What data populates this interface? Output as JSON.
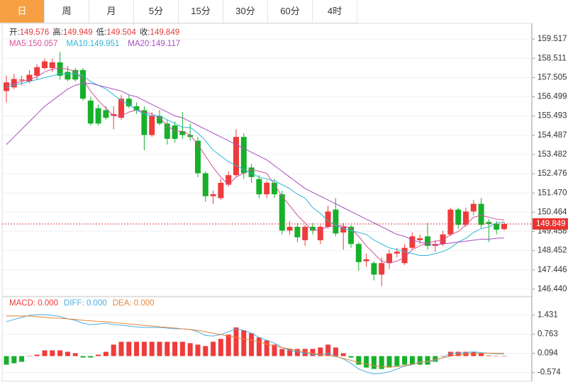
{
  "tabs": [
    "日",
    "周",
    "月",
    "5分",
    "15分",
    "30分",
    "60分",
    "4时"
  ],
  "active_tab": 0,
  "info_labels": [
    "开:",
    "高:",
    "低:",
    "收:"
  ],
  "chart_data": {
    "type": "candlestick",
    "up_color": "#ee3b3b",
    "down_color": "#17b02b",
    "ylim": [
      146.067,
      160.337
    ],
    "yticks": [
      159.517,
      158.511,
      157.505,
      156.499,
      155.493,
      154.487,
      153.482,
      152.476,
      {
        "value": 151.47,
        "label": "151.470"
      },
      150.464,
      149.458,
      148.452,
      147.446,
      {
        "value": 146.44,
        "label": "146.440"
      }
    ],
    "candles": [
      [
        156.8,
        157.6,
        156.2,
        157.25
      ],
      [
        156.99,
        157.7,
        156.9,
        157.43
      ],
      [
        157.35,
        157.6,
        157.1,
        157.4
      ],
      [
        157.3,
        157.9,
        157.2,
        157.65
      ],
      [
        157.6,
        158.2,
        157.4,
        158.05
      ],
      [
        158.0,
        158.5,
        157.9,
        158.35
      ],
      [
        158.0,
        158.5,
        157.8,
        158.3
      ],
      [
        158.3,
        158.85,
        157.4,
        157.6
      ],
      [
        157.8,
        158.1,
        157.3,
        157.4
      ],
      [
        157.9,
        158.0,
        157.3,
        157.4
      ],
      [
        157.9,
        158.0,
        156.3,
        156.4
      ],
      [
        156.3,
        156.5,
        155.0,
        155.1
      ],
      [
        155.9,
        156.1,
        155.0,
        155.1
      ],
      [
        155.8,
        156.0,
        155.3,
        155.4
      ],
      [
        155.5,
        156.0,
        154.8,
        155.6
      ],
      [
        155.4,
        156.6,
        155.3,
        156.4
      ],
      [
        156.4,
        156.6,
        155.9,
        156.0
      ],
      [
        156.0,
        156.2,
        155.6,
        155.8
      ],
      [
        155.8,
        156.0,
        153.7,
        154.5
      ],
      [
        154.5,
        155.7,
        154.4,
        155.5
      ],
      [
        155.5,
        155.8,
        155.0,
        155.1
      ],
      [
        155.1,
        155.3,
        154.0,
        154.3
      ],
      [
        155.0,
        155.2,
        154.1,
        154.3
      ],
      [
        154.7,
        155.7,
        154.3,
        154.5
      ],
      [
        154.5,
        155.1,
        154.2,
        154.4
      ],
      [
        154.2,
        154.4,
        152.3,
        152.5
      ],
      [
        152.5,
        152.6,
        151.0,
        151.3
      ],
      [
        151.3,
        151.6,
        150.9,
        151.4
      ],
      [
        151.2,
        152.2,
        151.1,
        152.0
      ],
      [
        151.9,
        152.6,
        151.8,
        152.4
      ],
      [
        152.4,
        154.8,
        152.3,
        154.4
      ],
      [
        154.4,
        154.6,
        152.2,
        152.5
      ],
      [
        152.8,
        153.0,
        152.0,
        152.3
      ],
      [
        152.2,
        152.4,
        151.2,
        151.4
      ],
      [
        151.4,
        152.1,
        151.2,
        152.0
      ],
      [
        152.0,
        152.2,
        151.2,
        151.4
      ],
      [
        151.4,
        151.6,
        149.3,
        149.5
      ],
      [
        149.5,
        150.0,
        149.3,
        149.7
      ],
      [
        149.7,
        149.9,
        148.9,
        149.15
      ],
      [
        149.0,
        149.8,
        148.7,
        149.7
      ],
      [
        149.7,
        149.9,
        149.3,
        149.5
      ],
      [
        149.0,
        149.8,
        148.8,
        149.7
      ],
      [
        149.7,
        150.8,
        149.6,
        150.5
      ],
      [
        150.6,
        151.2,
        149.2,
        149.35
      ],
      [
        149.4,
        149.9,
        148.5,
        149.7
      ],
      [
        149.7,
        149.8,
        148.6,
        148.8
      ],
      [
        148.8,
        148.9,
        147.4,
        147.85
      ],
      [
        147.9,
        148.3,
        147.6,
        148.0
      ],
      [
        147.8,
        147.9,
        146.9,
        147.2
      ],
      [
        147.2,
        148.1,
        146.6,
        147.8
      ],
      [
        147.8,
        148.5,
        147.5,
        148.3
      ],
      [
        148.3,
        148.6,
        148.1,
        148.4
      ],
      [
        147.8,
        148.8,
        147.7,
        148.6
      ],
      [
        148.6,
        149.4,
        148.5,
        149.2
      ],
      [
        149.0,
        149.3,
        148.8,
        149.1
      ],
      [
        149.2,
        149.9,
        148.5,
        148.7
      ],
      [
        148.7,
        149.0,
        148.4,
        148.8
      ],
      [
        148.8,
        149.5,
        148.7,
        149.3
      ],
      [
        149.3,
        150.7,
        149.2,
        150.6
      ],
      [
        150.6,
        150.7,
        149.6,
        149.8
      ],
      [
        149.8,
        150.7,
        149.7,
        150.5
      ],
      [
        150.5,
        151.1,
        150.3,
        150.9
      ],
      [
        150.9,
        151.2,
        149.6,
        149.8
      ],
      [
        149.95,
        150.1,
        148.9,
        149.85
      ],
      [
        149.85,
        150.0,
        149.3,
        149.55
      ],
      [
        149.576,
        149.949,
        149.504,
        149.849
      ]
    ],
    "series": [
      {
        "name": "MA5",
        "color": "#d2509a",
        "values": [
          157.1,
          157.2,
          157.3,
          157.4,
          157.55,
          157.8,
          157.95,
          158.0,
          157.95,
          157.8,
          157.4,
          156.8,
          156.3,
          155.9,
          155.5,
          155.5,
          155.7,
          155.8,
          155.7,
          155.6,
          155.4,
          155.0,
          154.7,
          154.7,
          154.5,
          154.0,
          153.4,
          152.8,
          152.3,
          151.9,
          152.3,
          152.5,
          152.7,
          152.6,
          152.5,
          151.9,
          151.3,
          150.8,
          150.3,
          149.9,
          149.5,
          149.55,
          149.7,
          149.75,
          149.75,
          149.6,
          149.2,
          148.7,
          148.3,
          147.9,
          147.8,
          147.9,
          148.1,
          148.5,
          148.7,
          148.85,
          148.95,
          149.0,
          149.3,
          149.45,
          149.8,
          150.2,
          150.3,
          150.2,
          150.1,
          150.057
        ]
      },
      {
        "name": "MA10",
        "color": "#2fb6d6",
        "values": [
          157.0,
          157.1,
          157.2,
          157.3,
          157.4,
          157.5,
          157.6,
          157.7,
          157.7,
          157.7,
          157.6,
          157.3,
          157.1,
          156.9,
          156.6,
          156.3,
          156.1,
          155.8,
          155.6,
          155.5,
          155.5,
          155.3,
          155.1,
          154.9,
          154.9,
          154.6,
          154.2,
          153.7,
          153.4,
          153.1,
          152.9,
          152.7,
          152.5,
          152.3,
          152.2,
          152.1,
          151.9,
          151.7,
          151.4,
          151.2,
          150.7,
          150.4,
          150.0,
          149.8,
          149.6,
          149.5,
          149.4,
          149.3,
          149.0,
          148.8,
          148.6,
          148.5,
          148.4,
          148.3,
          148.2,
          148.2,
          148.3,
          148.4,
          148.6,
          148.9,
          149.1,
          149.4,
          149.6,
          149.7,
          149.9,
          149.951
        ]
      },
      {
        "name": "MA20",
        "color": "#a650c0",
        "values": [
          154.0,
          154.4,
          154.8,
          155.2,
          155.6,
          156.0,
          156.3,
          156.6,
          156.9,
          157.1,
          157.2,
          157.2,
          157.1,
          157.0,
          156.9,
          156.8,
          156.6,
          156.5,
          156.3,
          156.1,
          155.9,
          155.7,
          155.5,
          155.4,
          155.2,
          155.0,
          154.8,
          154.6,
          154.4,
          154.2,
          154.0,
          153.8,
          153.6,
          153.4,
          153.2,
          152.9,
          152.6,
          152.3,
          152.0,
          151.7,
          151.5,
          151.3,
          151.1,
          150.9,
          150.7,
          150.5,
          150.3,
          150.1,
          149.9,
          149.7,
          149.5,
          149.3,
          149.2,
          149.0,
          148.9,
          148.8,
          148.75,
          148.8,
          148.85,
          148.9,
          148.95,
          149.0,
          149.05,
          149.05,
          149.1,
          149.117
        ]
      }
    ],
    "macd": {
      "legend": [
        "MACD: 0.000",
        "DIFF: 0.000",
        "DEA: 0.000"
      ],
      "ylim": [
        -0.879,
        2.064
      ],
      "yticks": [
        1.431,
        0.763,
        0.094,
        -0.574
      ],
      "histogram": [
        -0.3,
        -0.25,
        -0.2,
        0,
        0.05,
        0.2,
        0.2,
        0.2,
        0.15,
        0.1,
        -0.05,
        -0.05,
        0.05,
        0.15,
        0.4,
        0.5,
        0.5,
        0.5,
        0.5,
        0.5,
        0.5,
        0.5,
        0.5,
        0.5,
        0.45,
        0.4,
        0.35,
        0.5,
        0.6,
        0.75,
        1.0,
        0.9,
        0.8,
        0.65,
        0.55,
        0.4,
        0.25,
        0.25,
        0.25,
        0.25,
        0.25,
        0.3,
        0.4,
        0.3,
        0.1,
        -0.05,
        -0.3,
        -0.4,
        -0.45,
        -0.45,
        -0.4,
        -0.35,
        -0.3,
        -0.3,
        -0.3,
        -0.3,
        -0.2,
        0,
        0.15,
        0.15,
        0.15,
        0.15,
        0.1,
        0.02,
        0,
        0
      ],
      "lines": [
        {
          "name": "DIFF",
          "color": "#4aaee0",
          "values": [
            1.2,
            1.28,
            1.35,
            1.42,
            1.45,
            1.45,
            1.42,
            1.38,
            1.3,
            1.25,
            1.15,
            1.1,
            1.12,
            1.15,
            1.1,
            1.08,
            1.05,
            1.02,
            1.0,
            1.0,
            1.0,
            0.98,
            0.95,
            0.95,
            0.93,
            0.85,
            0.72,
            0.7,
            0.75,
            0.85,
            0.95,
            0.9,
            0.8,
            0.65,
            0.55,
            0.45,
            0.3,
            0.2,
            0.15,
            0.1,
            0.05,
            0.05,
            0.1,
            0.0,
            -0.1,
            -0.25,
            -0.45,
            -0.55,
            -0.62,
            -0.6,
            -0.55,
            -0.45,
            -0.35,
            -0.3,
            -0.2,
            -0.2,
            -0.15,
            -0.05,
            0.1,
            0.1,
            0.12,
            0.15,
            0.12,
            0.1,
            0.08,
            0.08
          ]
        },
        {
          "name": "DEA",
          "color": "#e8873a",
          "values": [
            1.4,
            1.4,
            1.4,
            1.4,
            1.38,
            1.35,
            1.33,
            1.32,
            1.3,
            1.28,
            1.25,
            1.23,
            1.21,
            1.2,
            1.17,
            1.15,
            1.12,
            1.1,
            1.07,
            1.05,
            1.02,
            1.0,
            0.98,
            0.95,
            0.93,
            0.9,
            0.85,
            0.8,
            0.75,
            0.7,
            0.65,
            0.6,
            0.55,
            0.5,
            0.42,
            0.35,
            0.3,
            0.25,
            0.2,
            0.15,
            0.1,
            0.05,
            0.02,
            -0.02,
            -0.08,
            -0.15,
            -0.22,
            -0.28,
            -0.33,
            -0.37,
            -0.38,
            -0.37,
            -0.33,
            -0.28,
            -0.22,
            -0.18,
            -0.12,
            -0.06,
            0.0,
            0.04,
            0.07,
            0.09,
            0.1,
            0.1,
            0.1,
            0.1
          ]
        }
      ]
    }
  }
}
